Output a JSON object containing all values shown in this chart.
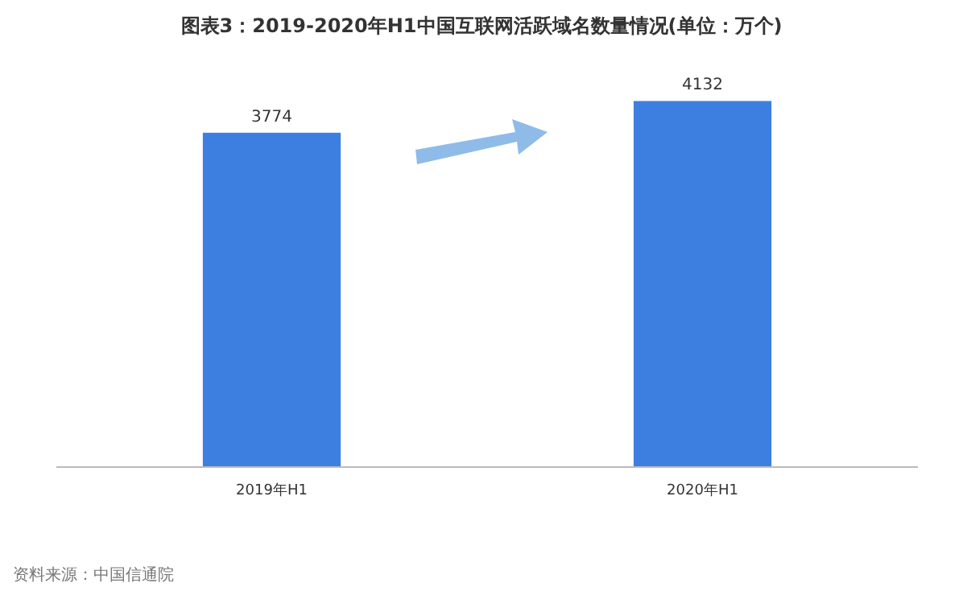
{
  "chart_data": {
    "type": "bar",
    "title": "图表3：2019-2020年H1中国互联网活跃域名数量情况(单位：万个)",
    "categories": [
      "2019年H1",
      "2020年H1"
    ],
    "values": [
      3774,
      4132
    ],
    "color": "#3d7fe0",
    "data_labels": true,
    "grid": false,
    "annotations": [
      "资料来源：中国信通院"
    ]
  }
}
